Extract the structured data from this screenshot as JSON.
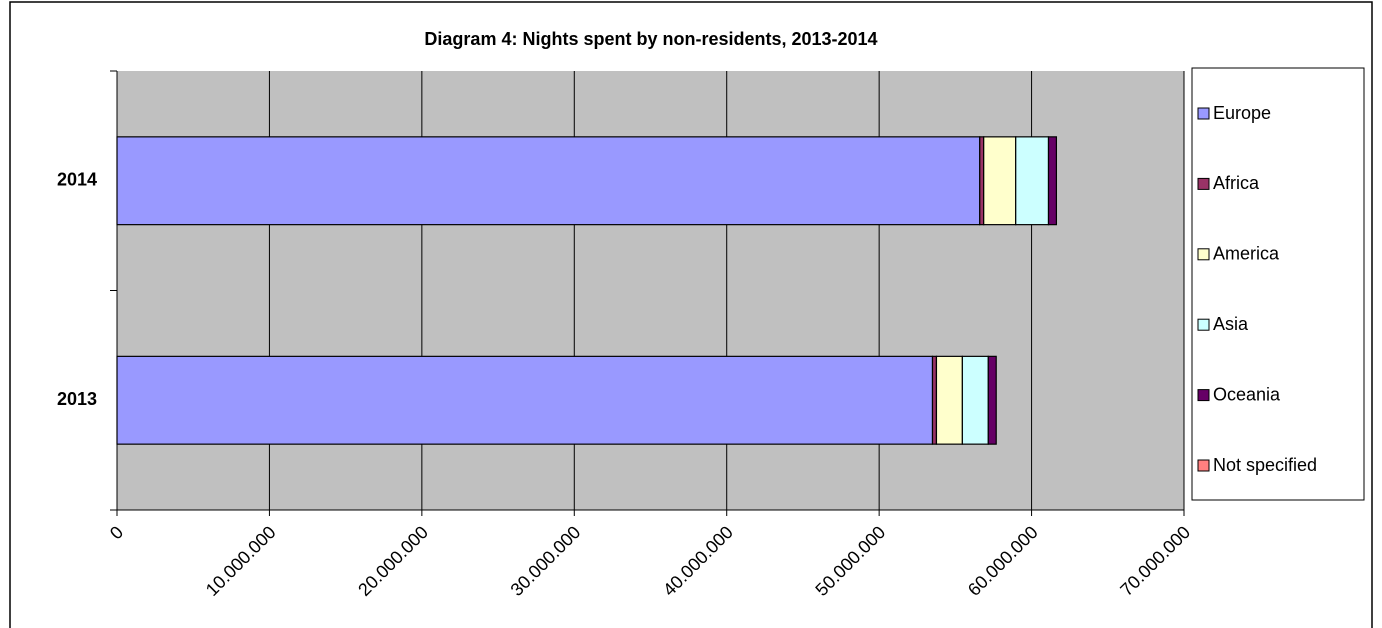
{
  "chart_data": {
    "type": "stacked-bar-horizontal",
    "title": "Diagram 4: Nights spent by non-residents, 2013-2014",
    "categories": [
      "2013",
      "2014"
    ],
    "series": [
      {
        "name": "Europe",
        "color": "#9999FF",
        "values": [
          53500000,
          56600000
        ]
      },
      {
        "name": "Africa",
        "color": "#993366",
        "values": [
          260000,
          260000
        ]
      },
      {
        "name": "America",
        "color": "#FFFFCC",
        "values": [
          1700000,
          2100000
        ]
      },
      {
        "name": "Asia",
        "color": "#CCFFFF",
        "values": [
          1700000,
          2150000
        ]
      },
      {
        "name": "Oceania",
        "color": "#660066",
        "values": [
          520000,
          520000
        ]
      },
      {
        "name": "Not specified",
        "color": "#FF8080",
        "values": [
          0,
          0
        ]
      }
    ],
    "xlim": [
      0,
      70000000
    ],
    "xticks": [
      0,
      {
        "value": 10000000,
        "label": "10.000.000"
      },
      {
        "value": 20000000,
        "label": "20.000.000"
      },
      {
        "value": 30000000,
        "label": "30.000.000"
      },
      {
        "value": 40000000,
        "label": "40.000.000"
      },
      {
        "value": 50000000,
        "label": "50.000.000"
      },
      {
        "value": 60000000,
        "label": "60.000.000"
      },
      {
        "value": 70000000,
        "label": "70.000.000"
      }
    ],
    "grid": true,
    "legend": "right"
  }
}
